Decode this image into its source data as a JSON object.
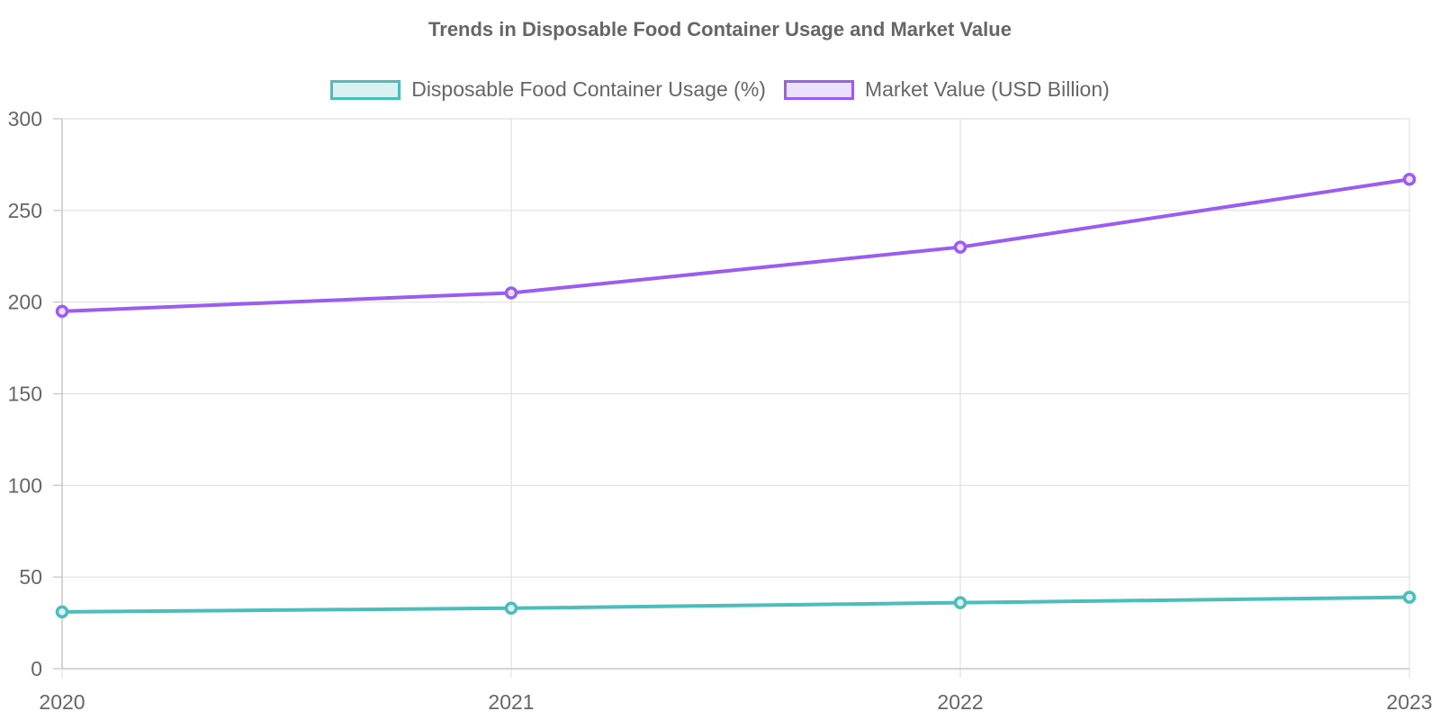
{
  "chart_data": {
    "type": "line",
    "title": "Trends in Disposable Food Container Usage and Market Value",
    "xlabel": "",
    "ylabel": "",
    "categories": [
      "2020",
      "2021",
      "2022",
      "2023"
    ],
    "series": [
      {
        "name": "Disposable Food Container Usage (%)",
        "values": [
          31,
          33,
          36,
          39
        ],
        "color": "#4bbdbb",
        "fill": "#d9f2f1"
      },
      {
        "name": "Market Value (USD Billion)",
        "values": [
          195,
          205,
          230,
          267
        ],
        "color": "#9b5cf0",
        "fill": "#ece1fd"
      }
    ],
    "ylim": [
      0,
      300
    ],
    "yticks": [
      0,
      50,
      100,
      150,
      200,
      250,
      300
    ],
    "grid": true,
    "legend": "top-center"
  }
}
